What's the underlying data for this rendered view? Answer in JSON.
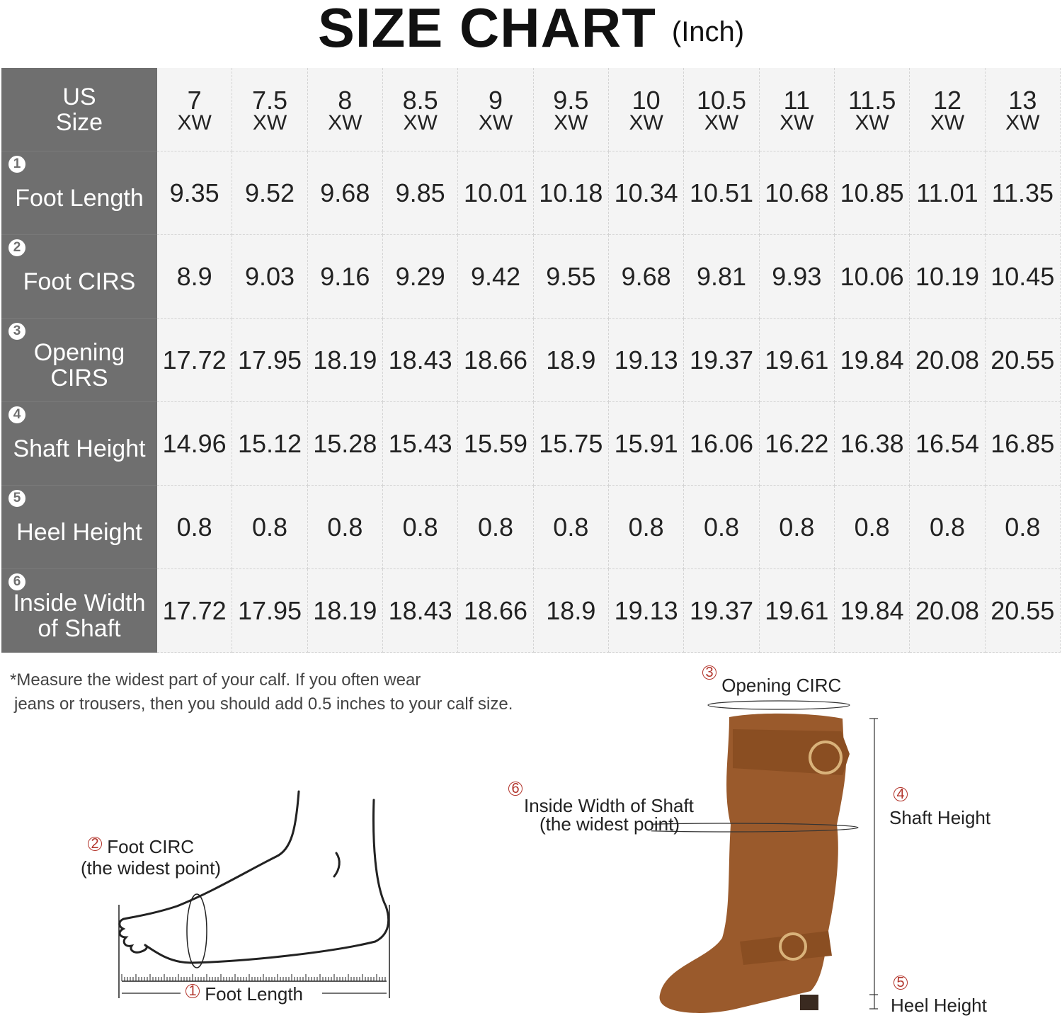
{
  "title": {
    "main": "SIZE CHART",
    "unit": "(Inch)"
  },
  "table": {
    "size_header": "US Size",
    "sizes": [
      {
        "num": "7",
        "width": "XW"
      },
      {
        "num": "7.5",
        "width": "XW"
      },
      {
        "num": "8",
        "width": "XW"
      },
      {
        "num": "8.5",
        "width": "XW"
      },
      {
        "num": "9",
        "width": "XW"
      },
      {
        "num": "9.5",
        "width": "XW"
      },
      {
        "num": "10",
        "width": "XW"
      },
      {
        "num": "10.5",
        "width": "XW"
      },
      {
        "num": "11",
        "width": "XW"
      },
      {
        "num": "11.5",
        "width": "XW"
      },
      {
        "num": "12",
        "width": "XW"
      },
      {
        "num": "13",
        "width": "XW"
      }
    ],
    "rows": [
      {
        "index": "1",
        "label": "Foot Length",
        "values": [
          "9.35",
          "9.52",
          "9.68",
          "9.85",
          "10.01",
          "10.18",
          "10.34",
          "10.51",
          "10.68",
          "10.85",
          "11.01",
          "11.35"
        ]
      },
      {
        "index": "2",
        "label": "Foot CIRS",
        "values": [
          "8.9",
          "9.03",
          "9.16",
          "9.29",
          "9.42",
          "9.55",
          "9.68",
          "9.81",
          "9.93",
          "10.06",
          "10.19",
          "10.45"
        ]
      },
      {
        "index": "3",
        "label": "Opening CIRS",
        "values": [
          "17.72",
          "17.95",
          "18.19",
          "18.43",
          "18.66",
          "18.9",
          "19.13",
          "19.37",
          "19.61",
          "19.84",
          "20.08",
          "20.55"
        ]
      },
      {
        "index": "4",
        "label": "Shaft Height",
        "values": [
          "14.96",
          "15.12",
          "15.28",
          "15.43",
          "15.59",
          "15.75",
          "15.91",
          "16.06",
          "16.22",
          "16.38",
          "16.54",
          "16.85"
        ]
      },
      {
        "index": "5",
        "label": "Heel Height",
        "values": [
          "0.8",
          "0.8",
          "0.8",
          "0.8",
          "0.8",
          "0.8",
          "0.8",
          "0.8",
          "0.8",
          "0.8",
          "0.8",
          "0.8"
        ]
      },
      {
        "index": "6",
        "label": "Inside Width of Shaft",
        "values": [
          "17.72",
          "17.95",
          "18.19",
          "18.43",
          "18.66",
          "18.9",
          "19.13",
          "19.37",
          "19.61",
          "19.84",
          "20.08",
          "20.55"
        ]
      }
    ]
  },
  "note": {
    "line1": "*Measure the widest part of your calf. If you often wear",
    "line2": "jeans or trousers, then you should add 0.5 inches to your calf size."
  },
  "diagram": {
    "foot_circ": {
      "index": "2",
      "label": "Foot  CIRC",
      "sub": "(the widest point)"
    },
    "foot_length": {
      "index": "1",
      "label": "Foot  Length"
    },
    "opening_circ": {
      "index": "3",
      "label": "Opening CIRC"
    },
    "inside_width": {
      "index": "6",
      "label": "Inside Width of Shaft",
      "sub": "(the widest point)"
    },
    "shaft_height": {
      "index": "4",
      "label": "Shaft Height"
    },
    "heel_height": {
      "index": "5",
      "label": "Heel Height"
    }
  },
  "colors": {
    "header_bg": "#6f6f6f",
    "cell_bg": "#f4f4f4",
    "boot": "#9a5a2c",
    "marker": "#b2332a"
  }
}
